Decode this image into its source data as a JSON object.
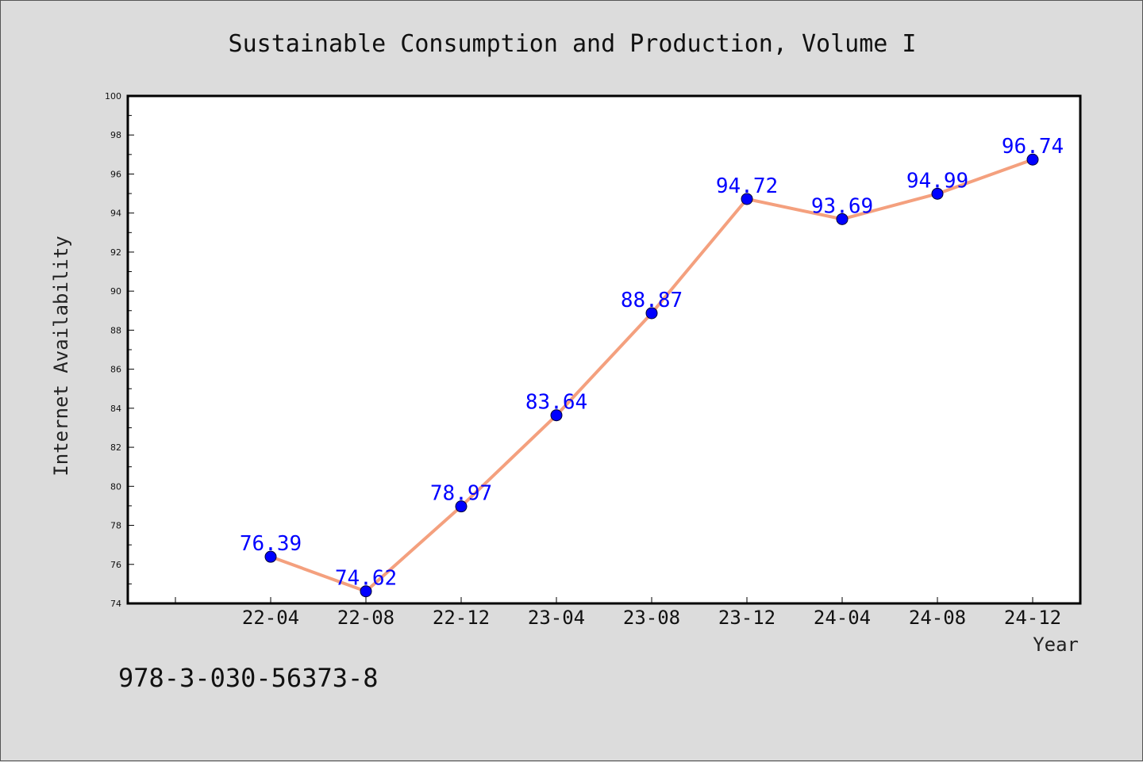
{
  "chart_data": {
    "type": "line",
    "title": "Sustainable Consumption and Production, Volume I",
    "xlabel": "Year",
    "ylabel": "Internet Availability",
    "categories": [
      "22-04",
      "22-08",
      "22-12",
      "23-04",
      "23-08",
      "23-12",
      "24-04",
      "24-08",
      "24-12"
    ],
    "series": [
      {
        "values": [
          76.39,
          74.62,
          78.97,
          83.64,
          88.87,
          94.72,
          93.69,
          94.99,
          96.74
        ]
      }
    ],
    "data_labels": [
      "76.39",
      "74.62",
      "78.97",
      "83.64",
      "88.87",
      "94.72",
      "93.69",
      "94.99",
      "96.74"
    ],
    "ylim": [
      74,
      100
    ],
    "yticks": [
      74,
      76,
      78,
      80,
      82,
      84,
      86,
      88,
      90,
      92,
      94,
      96,
      98,
      100
    ],
    "grid": false,
    "legend": "none",
    "colors": {
      "line": "#f4a07e",
      "marker": "#0000ff",
      "label": "#0000ff",
      "background": "#dcdcdc",
      "plot_area": "#ffffff"
    }
  },
  "footer": {
    "isbn": "978-3-030-56373-8"
  }
}
